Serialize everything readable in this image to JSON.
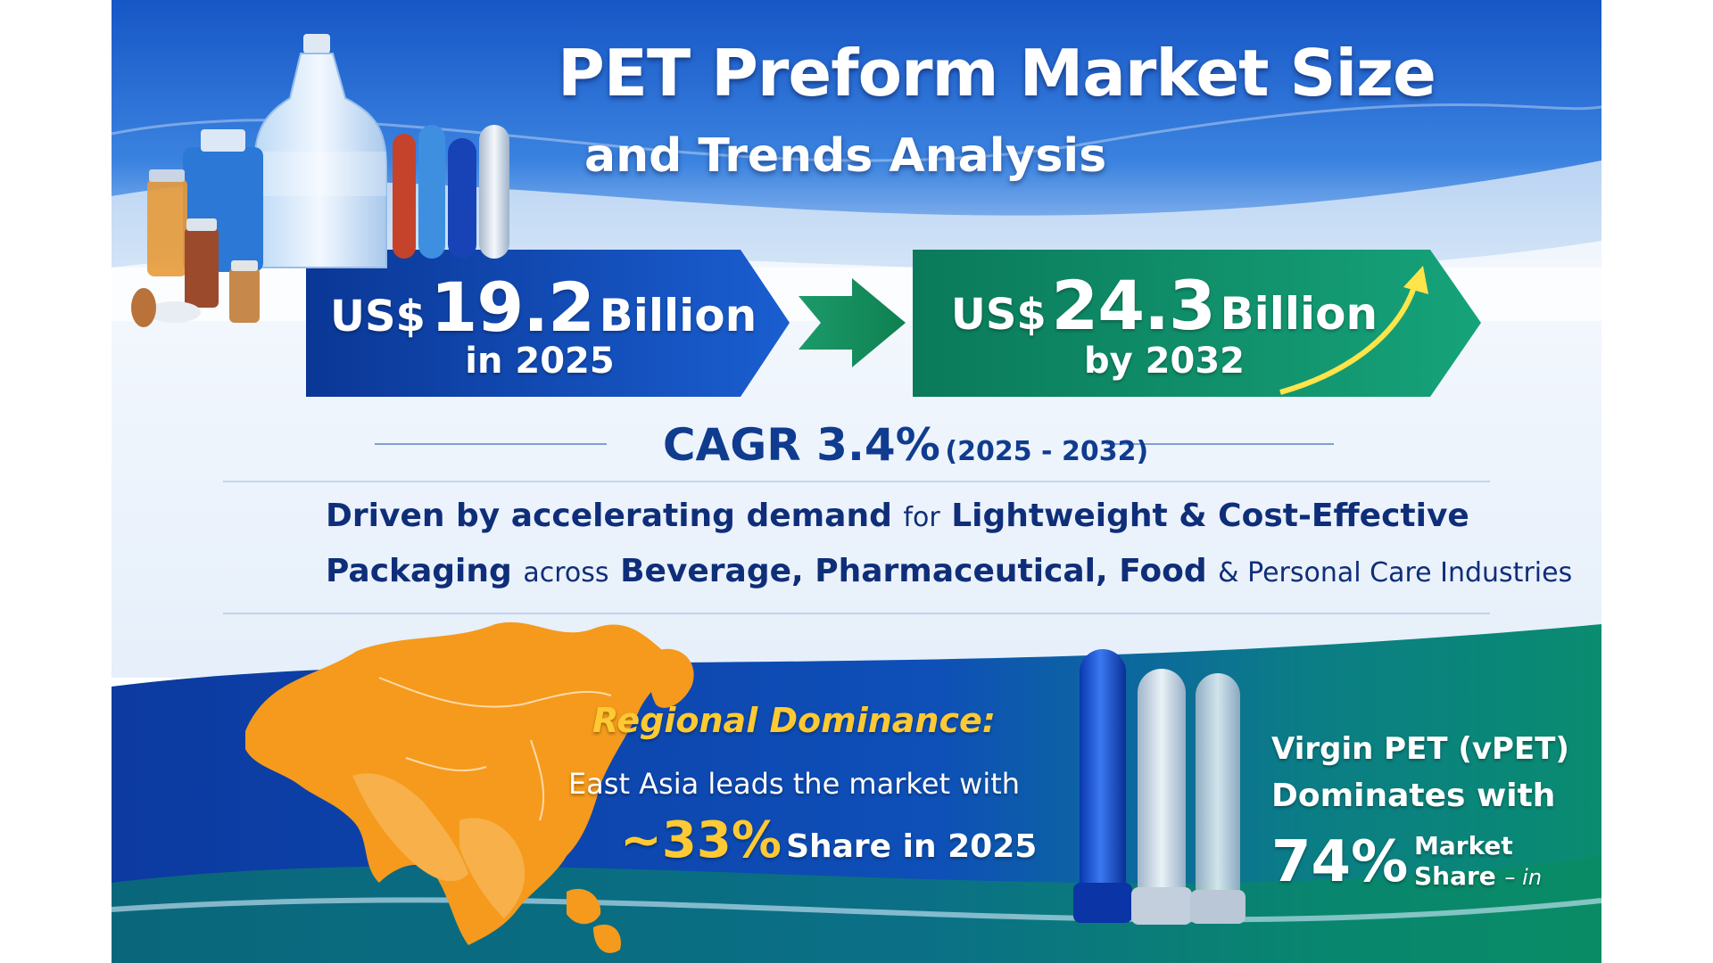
{
  "title": {
    "line1": "PET Preform Market Size",
    "line2": "and Trends Analysis"
  },
  "market_2025": {
    "currency": "US$",
    "value": "19.2",
    "unit": "Billion",
    "period": "in 2025"
  },
  "market_2032": {
    "currency": "US$",
    "value": "24.3",
    "unit": "Billion",
    "period": "by 2032"
  },
  "cagr": {
    "label": "CAGR 3.4%",
    "years": "(2025 - 2032)"
  },
  "drivers": {
    "line1_bold": "Driven by accelerating demand",
    "line1_thin": "for",
    "line1_end": "Lightweight & Cost-Effective",
    "line2_bold": "Packaging",
    "line2_thin": "across",
    "line2_end": "Beverage, Pharmaceutical, Food",
    "line2_tail": "& Personal Care Industries"
  },
  "regional": {
    "heading": "Regional Dominance:",
    "line1": "East Asia leads the market with",
    "share": "~33%",
    "line2": "Share in 2025"
  },
  "material": {
    "line1": "Virgin PET (vPET)",
    "line2": "Dominates with",
    "share": "74%",
    "label_a": "Market",
    "label_b": "Share",
    "tail": "– in"
  },
  "colors": {
    "blue_banner": "#0e3f9e",
    "green_banner": "#0c8a62",
    "map_orange": "#f59a1c",
    "accent_yellow": "#ffc933",
    "text_navy": "#0f2e79"
  }
}
